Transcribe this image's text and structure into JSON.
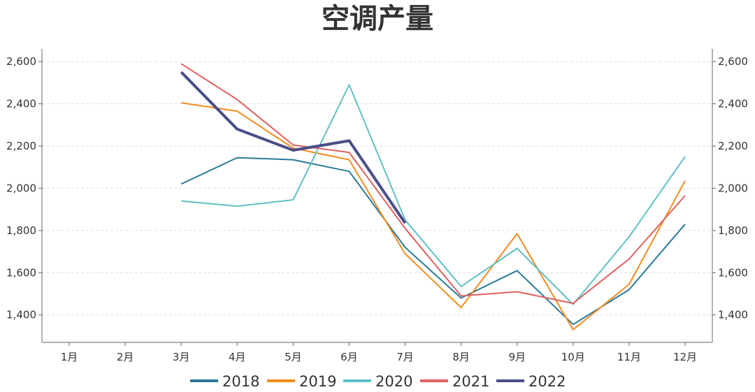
{
  "chart_data": {
    "type": "line",
    "title": "空调产量",
    "categories": [
      "1月",
      "2月",
      "3月",
      "4月",
      "5月",
      "6月",
      "7月",
      "8月",
      "9月",
      "10月",
      "11月",
      "12月"
    ],
    "y_ticks": [
      "1,400",
      "1,600",
      "1,800",
      "2,000",
      "2,200",
      "2,400",
      "2,600"
    ],
    "y_tick_values": [
      1400,
      1600,
      1800,
      2000,
      2200,
      2400,
      2600
    ],
    "ylim": [
      1270,
      2660
    ],
    "grid": true,
    "legend_position": "bottom-center",
    "dual_y_axis": true,
    "series": [
      {
        "name": "2018",
        "color": "#2b7a99",
        "values": [
          null,
          null,
          2020,
          2145,
          2135,
          2080,
          1720,
          1480,
          1610,
          1355,
          1520,
          1830
        ]
      },
      {
        "name": "2019",
        "color": "#f28c1e",
        "values": [
          null,
          null,
          2405,
          2365,
          2190,
          2135,
          1690,
          1435,
          1785,
          1330,
          1545,
          2035
        ]
      },
      {
        "name": "2020",
        "color": "#5fc0c3",
        "values": [
          null,
          null,
          1940,
          1915,
          1945,
          2490,
          1850,
          1535,
          1715,
          1450,
          1770,
          2150
        ]
      },
      {
        "name": "2021",
        "color": "#e06060",
        "values": [
          null,
          null,
          2590,
          2420,
          2205,
          2170,
          1810,
          1490,
          1510,
          1455,
          1665,
          1965
        ]
      },
      {
        "name": "2022",
        "color": "#4a4e87",
        "values": [
          null,
          null,
          2550,
          2280,
          2180,
          2225,
          1835,
          null,
          null,
          null,
          null,
          null
        ]
      }
    ]
  }
}
